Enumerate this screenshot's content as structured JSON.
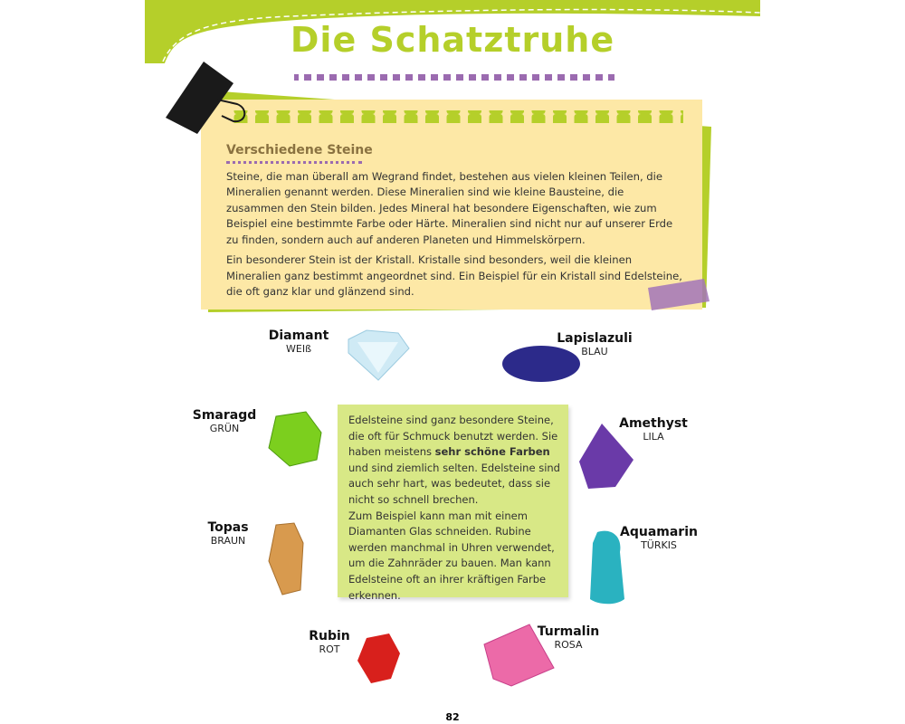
{
  "title": "Die Schatztruhe",
  "intro": {
    "heading": "Verschiedene Steine",
    "p1": "Steine, die man überall am Wegrand findet, bestehen aus vielen kleinen Teilen, die Mineralien genannt werden. Diese Mineralien sind wie kleine Bausteine, die zusammen den Stein bilden. Jedes Mineral hat besondere Eigenschaften, wie zum Beispiel eine bestimmte Farbe oder Härte. Mineralien sind nicht nur auf unserer Erde zu finden, sondern auch auf anderen Planeten und Himmelskörpern.",
    "p2": "Ein besonderer Stein ist der Kristall. Kristalle sind besonders, weil die kleinen Mineralien ganz bestimmt angeordnet sind. Ein Beispiel für ein Kristall sind Edelsteine, die oft ganz klar und glänzend sind."
  },
  "note": {
    "before": "Edelsteine sind ganz besondere Steine, die oft für Schmuck benutzt werden. Sie haben meistens ",
    "bold": "sehr schöne Farben",
    "after": " und sind ziemlich selten. Edelsteine sind auch sehr hart, was bedeutet, dass sie nicht so schnell brechen.",
    "p2": "Zum Beispiel kann man mit einem Diaman­ten Glas schneiden. Rubine werden manch­mal in Uhren verwendet, um die Zahnräder zu bauen. Man kann Edelsteine oft an ihrer kräftigen Farbe erkennen."
  },
  "gems": [
    {
      "name": "Diamant",
      "color": "WEIß",
      "hex": "#cfeaf5"
    },
    {
      "name": "Lapislazuli",
      "color": "BLAU",
      "hex": "#2c2a8a"
    },
    {
      "name": "Smaragd",
      "color": "GRÜN",
      "hex": "#7ccf1e"
    },
    {
      "name": "Amethyst",
      "color": "LILA",
      "hex": "#6a3aa8"
    },
    {
      "name": "Topas",
      "color": "BRAUN",
      "hex": "#d89a4e"
    },
    {
      "name": "Aquamarin",
      "color": "TÜRKIS",
      "hex": "#2ab2c0"
    },
    {
      "name": "Rubin",
      "color": "ROT",
      "hex": "#d8201c"
    },
    {
      "name": "Turmalin",
      "color": "ROSA",
      "hex": "#ec6aa8"
    }
  ],
  "colors": {
    "accent_green": "#b5cf2a",
    "purple": "#9b6bb0",
    "yellow": "#fde8a6"
  },
  "page_number": "82"
}
